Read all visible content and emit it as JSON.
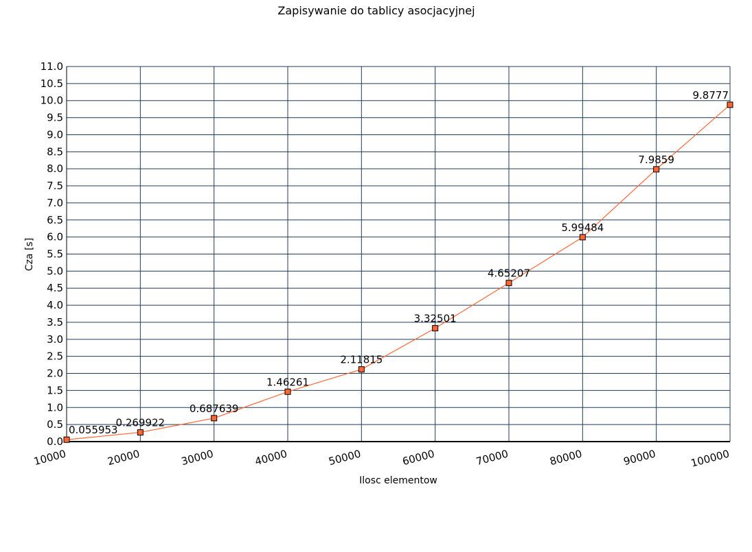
{
  "chart_data": {
    "type": "line",
    "title": "Zapisywanie do tablicy asocjacyjnej",
    "xlabel": "Ilosc elementow",
    "ylabel": "Cza [s]",
    "x": [
      10000,
      20000,
      30000,
      40000,
      50000,
      60000,
      70000,
      80000,
      90000,
      100000
    ],
    "x_tick_labels": [
      "10000",
      "20000",
      "30000",
      "40000",
      "50000",
      "60000",
      "70000",
      "80000",
      "90000",
      "100000"
    ],
    "y_tick_labels": [
      "0.0",
      "0.5",
      "1.0",
      "1.5",
      "2.0",
      "2.5",
      "3.0",
      "3.5",
      "4.0",
      "4.5",
      "5.0",
      "5.5",
      "6.0",
      "6.5",
      "7.0",
      "7.5",
      "8.0",
      "8.5",
      "9.0",
      "9.5",
      "10.0",
      "10.5",
      "11.0"
    ],
    "xlim": [
      10000,
      100000
    ],
    "ylim": [
      0,
      11
    ],
    "grid": true,
    "series": [
      {
        "values": [
          0.055953,
          0.269922,
          0.687639,
          1.46261,
          2.11815,
          3.32501,
          4.65207,
          5.99484,
          7.9859,
          9.8777
        ],
        "data_labels": [
          "0.055953",
          "0.269922",
          "0.687639",
          "1.46261",
          "2.11815",
          "3.32501",
          "4.65207",
          "5.99484",
          "7.9859",
          "9.8777"
        ]
      }
    ],
    "colors": {
      "line": "#ff6633",
      "marker_fill": "#ff6633",
      "marker_stroke": "#000000",
      "grid": "#1f3b5a",
      "axis": "#000000"
    }
  }
}
